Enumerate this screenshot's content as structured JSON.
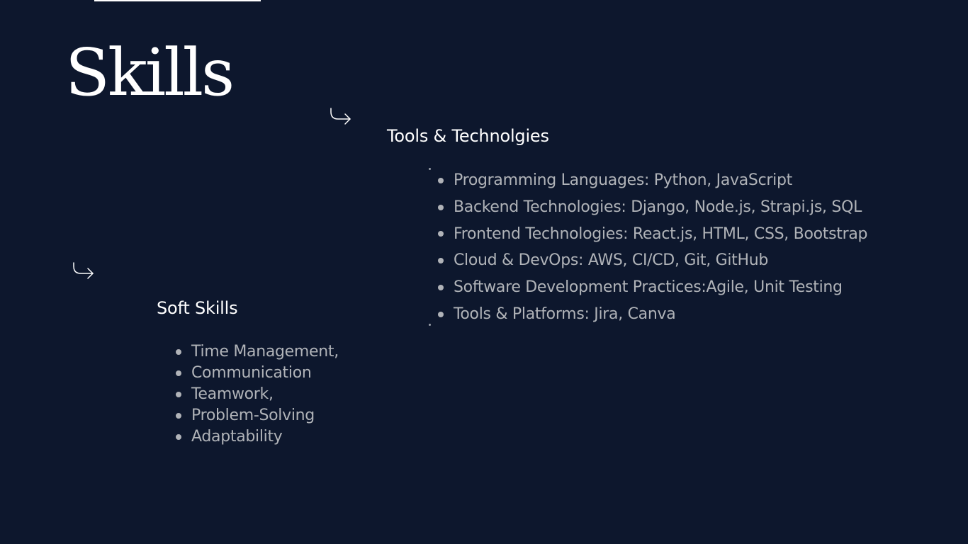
{
  "slide": {
    "title": "Skills"
  },
  "tools": {
    "heading": "Tools & Technolgies",
    "items": [
      "Programming Languages: Python, JavaScript",
      "Backend Technologies: Django, Node.js, Strapi.js, SQL",
      "Frontend Technologies: React.js, HTML, CSS, Bootstrap",
      "Cloud & DevOps: AWS, CI/CD, Git, GitHub",
      "Software Development Practices:Agile, Unit Testing",
      "Tools & Platforms: Jira, Canva"
    ]
  },
  "soft_skills": {
    "heading": "Soft Skills",
    "items": [
      "Time Management,",
      "Communication",
      "Teamwork,",
      "Problem-Solving",
      "Adaptability"
    ]
  },
  "icons": {
    "arrow": "arrow-curve-down-right-icon"
  },
  "colors": {
    "background": "#0d172d",
    "heading": "#ffffff",
    "body_text": "#b0b3b8"
  }
}
